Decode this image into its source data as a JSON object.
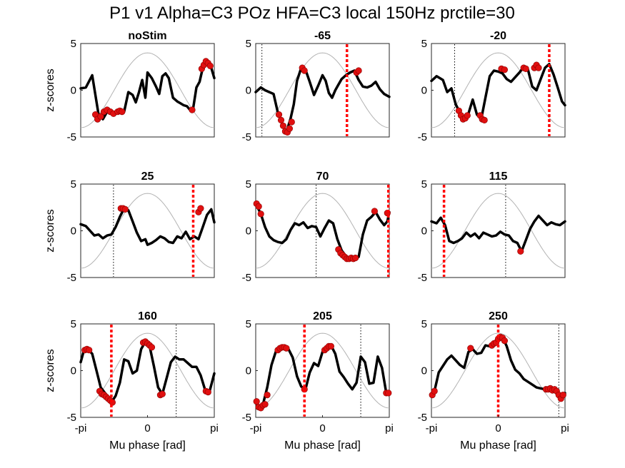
{
  "figure_title": "P1 v1 Alpha=C3 POz HFA=C3 local 150Hz prctile=30",
  "colors": {
    "signal": "#000000",
    "points": "#e01010",
    "cosine": "#b3b3b3",
    "red_marker": "#ff0000"
  },
  "chart_data": [
    {
      "type": "line",
      "title": "noStim",
      "ylabel": "z-scores",
      "xlabel": "",
      "xlim": [
        -3.1416,
        3.1416
      ],
      "ylim": [
        -5,
        5
      ],
      "yticks": [
        5,
        0,
        -5
      ],
      "xtick_labels": [],
      "red_marker": null,
      "black_dotted": null,
      "signal": {
        "x": [
          -3.14,
          -2.9,
          -2.6,
          -2.3,
          -2.1,
          -1.9,
          -1.6,
          -1.3,
          -1.1,
          -0.9,
          -0.7,
          -0.55,
          -0.4,
          -0.25,
          -0.1,
          0.0,
          0.2,
          0.4,
          0.55,
          0.7,
          0.85,
          1.0,
          1.2,
          1.4,
          1.55,
          1.7,
          1.85,
          2.0,
          2.15,
          2.3,
          2.45,
          2.6,
          2.75,
          2.9,
          3.0,
          3.14
        ],
        "y": [
          0.2,
          0.3,
          1.6,
          -2.6,
          -3.1,
          -2.3,
          -2.5,
          -2.2,
          -2.3,
          -0.2,
          -0.5,
          -1.3,
          -0.2,
          1.1,
          -0.8,
          1.9,
          1.3,
          0.4,
          -0.4,
          1.5,
          1.8,
          1.3,
          -0.8,
          -1.2,
          -1.4,
          -1.6,
          -1.7,
          -2.1,
          -1.9,
          0.3,
          0.9,
          2.4,
          3.0,
          2.8,
          2.4,
          1.3
        ]
      },
      "points": {
        "x": [
          -2.45,
          -2.35,
          -2.2,
          -2.05,
          -1.9,
          -1.75,
          -1.6,
          -1.4,
          -1.3,
          -1.2,
          2.1,
          2.55,
          2.65,
          2.75,
          2.85,
          2.95
        ],
        "y": [
          -2.6,
          -3.1,
          -2.8,
          -2.3,
          -2.1,
          -2.3,
          -2.5,
          -2.3,
          -2.2,
          -2.3,
          -2.1,
          2.3,
          2.7,
          3.1,
          2.9,
          2.6
        ]
      }
    },
    {
      "type": "line",
      "title": "-65",
      "ylabel": "",
      "xlabel": "",
      "xlim": [
        -3.1416,
        3.1416
      ],
      "ylim": [
        -5,
        5
      ],
      "yticks": [
        5,
        0,
        -5
      ],
      "xtick_labels": [],
      "red_marker": 1.15,
      "black_dotted": -2.85,
      "signal": {
        "x": [
          -3.14,
          -2.9,
          -2.7,
          -2.5,
          -2.3,
          -2.1,
          -1.9,
          -1.7,
          -1.5,
          -1.35,
          -1.2,
          -1.0,
          -0.8,
          -0.6,
          -0.4,
          -0.2,
          0.0,
          0.15,
          0.3,
          0.45,
          0.6,
          0.75,
          0.9,
          1.1,
          1.3,
          1.5,
          1.7,
          1.9,
          2.1,
          2.3,
          2.5,
          2.7,
          2.9,
          3.14
        ],
        "y": [
          -0.2,
          0.3,
          0.0,
          -0.2,
          -0.4,
          -2.4,
          -3.5,
          -4.5,
          -3.0,
          -1.5,
          1.0,
          2.4,
          2.2,
          0.9,
          -0.5,
          0.5,
          1.6,
          1.0,
          -0.3,
          -0.8,
          0.0,
          0.6,
          1.2,
          1.6,
          1.9,
          2.1,
          1.1,
          0.4,
          0.3,
          0.5,
          0.9,
          0.1,
          -0.4,
          -0.7
        ]
      },
      "points": {
        "x": [
          -2.05,
          -1.95,
          -1.85,
          -1.75,
          -1.65,
          -1.55,
          -1.45,
          -0.95,
          -0.85,
          1.6,
          1.7
        ],
        "y": [
          -2.6,
          -3.2,
          -3.8,
          -4.4,
          -4.5,
          -4.1,
          -3.4,
          2.4,
          2.1,
          1.9,
          2.1
        ]
      }
    },
    {
      "type": "line",
      "title": "-20",
      "ylabel": "",
      "xlabel": "",
      "xlim": [
        -3.1416,
        3.1416
      ],
      "ylim": [
        -5,
        5
      ],
      "yticks": [
        5,
        0,
        -5
      ],
      "xtick_labels": [],
      "red_marker": 2.4,
      "black_dotted": -2.05,
      "signal": {
        "x": [
          -3.14,
          -2.9,
          -2.6,
          -2.4,
          -2.2,
          -2.0,
          -1.8,
          -1.6,
          -1.4,
          -1.2,
          -1.0,
          -0.8,
          -0.6,
          -0.4,
          -0.2,
          0.0,
          0.2,
          0.4,
          0.6,
          0.8,
          1.0,
          1.2,
          1.4,
          1.6,
          1.8,
          2.0,
          2.2,
          2.4,
          2.6,
          2.8,
          3.0,
          3.14
        ],
        "y": [
          1.0,
          1.5,
          1.1,
          -0.2,
          0.2,
          -1.5,
          -2.4,
          -3.0,
          -2.5,
          -1.0,
          -2.6,
          -3.1,
          -0.8,
          1.5,
          2.1,
          2.0,
          1.8,
          1.2,
          0.9,
          1.4,
          1.9,
          2.5,
          2.2,
          0.4,
          0.0,
          1.2,
          2.4,
          2.8,
          1.7,
          0.3,
          -1.2,
          -1.6
        ]
      },
      "points": {
        "x": [
          -1.85,
          -1.75,
          -1.65,
          -1.55,
          -1.45,
          -0.85,
          -0.75,
          -0.65,
          0.15,
          0.3,
          1.2,
          1.3,
          1.7,
          1.8,
          1.9
        ],
        "y": [
          -2.2,
          -2.7,
          -3.1,
          -3.0,
          -2.7,
          -2.7,
          -3.1,
          -3.2,
          2.3,
          2.2,
          2.4,
          2.3,
          2.4,
          2.7,
          2.4
        ]
      }
    },
    {
      "type": "line",
      "title": "25",
      "ylabel": "z-scores",
      "xlabel": "",
      "xlim": [
        -3.1416,
        3.1416
      ],
      "ylim": [
        -5,
        5
      ],
      "yticks": [
        5,
        0,
        -5
      ],
      "xtick_labels": [],
      "red_marker": 2.15,
      "black_dotted": -1.6,
      "signal": {
        "x": [
          -3.14,
          -2.9,
          -2.7,
          -2.5,
          -2.3,
          -2.1,
          -1.9,
          -1.7,
          -1.5,
          -1.3,
          -1.1,
          -0.9,
          -0.7,
          -0.5,
          -0.3,
          -0.1,
          0.0,
          0.2,
          0.4,
          0.6,
          0.8,
          1.0,
          1.2,
          1.4,
          1.6,
          1.8,
          2.0,
          2.2,
          2.4,
          2.6,
          2.8,
          3.0,
          3.14
        ],
        "y": [
          0.7,
          0.5,
          0.0,
          -0.5,
          -0.4,
          -0.8,
          -0.5,
          -0.4,
          0.4,
          1.5,
          2.4,
          2.2,
          1.0,
          -0.2,
          -1.1,
          -0.9,
          -1.5,
          -1.3,
          -1.0,
          -0.6,
          -0.8,
          -1.2,
          -1.3,
          -0.6,
          -0.8,
          -0.1,
          -0.9,
          -0.6,
          -0.9,
          0.4,
          1.7,
          2.3,
          0.9
        ]
      },
      "points": {
        "x": [
          -1.25,
          -1.15,
          -1.05,
          2.4,
          2.5
        ],
        "y": [
          2.4,
          2.4,
          2.3,
          2.0,
          2.4
        ]
      }
    },
    {
      "type": "line",
      "title": "70",
      "ylabel": "",
      "xlabel": "",
      "xlim": [
        -3.1416,
        3.1416
      ],
      "ylim": [
        -5,
        5
      ],
      "yticks": [
        5,
        0,
        -5
      ],
      "xtick_labels": [],
      "red_marker": 3.1,
      "black_dotted": -0.3,
      "signal": {
        "x": [
          -3.14,
          -2.9,
          -2.7,
          -2.5,
          -2.3,
          -2.1,
          -1.9,
          -1.7,
          -1.5,
          -1.3,
          -1.1,
          -0.9,
          -0.7,
          -0.5,
          -0.3,
          -0.1,
          0.1,
          0.3,
          0.5,
          0.7,
          0.9,
          1.1,
          1.3,
          1.5,
          1.7,
          1.9,
          2.1,
          2.3,
          2.5,
          2.7,
          2.9,
          3.05,
          3.14
        ],
        "y": [
          2.9,
          1.8,
          0.4,
          -0.6,
          -1.0,
          -1.2,
          -1.3,
          -0.9,
          0.1,
          0.8,
          0.6,
          0.9,
          0.3,
          0.5,
          0.4,
          -0.6,
          0.3,
          1.1,
          0.8,
          -0.9,
          -2.1,
          -2.7,
          -3.0,
          -3.0,
          -2.8,
          -0.4,
          1.1,
          1.5,
          2.0,
          1.2,
          0.6,
          1.0,
          2.0
        ]
      },
      "points": {
        "x": [
          -3.1,
          -3.0,
          -2.9,
          0.75,
          0.85,
          0.95,
          1.05,
          1.15,
          1.25,
          1.35,
          1.45,
          1.55,
          2.45,
          3.05
        ],
        "y": [
          2.9,
          2.6,
          1.8,
          -2.0,
          -2.4,
          -2.6,
          -2.8,
          -3.0,
          -3.0,
          -2.9,
          -3.0,
          -2.9,
          2.1,
          1.9
        ]
      }
    },
    {
      "type": "line",
      "title": "115",
      "ylabel": "",
      "xlabel": "",
      "xlim": [
        -3.1416,
        3.1416
      ],
      "ylim": [
        -5,
        5
      ],
      "yticks": [
        5,
        0,
        -5
      ],
      "xtick_labels": [],
      "red_marker": -2.55,
      "black_dotted": 0.35,
      "signal": {
        "x": [
          -3.14,
          -2.9,
          -2.7,
          -2.5,
          -2.3,
          -2.1,
          -1.9,
          -1.7,
          -1.5,
          -1.3,
          -1.1,
          -0.9,
          -0.7,
          -0.5,
          -0.3,
          -0.1,
          0.1,
          0.3,
          0.5,
          0.7,
          0.9,
          1.1,
          1.3,
          1.5,
          1.7,
          1.9,
          2.1,
          2.3,
          2.5,
          2.7,
          2.9,
          3.14
        ],
        "y": [
          1.0,
          0.8,
          1.4,
          0.6,
          -1.1,
          -1.3,
          -1.1,
          -0.8,
          -0.2,
          -0.6,
          -0.3,
          -0.8,
          -0.2,
          -0.4,
          -0.6,
          -0.5,
          -0.1,
          -0.4,
          -0.5,
          -1.1,
          -1.3,
          -2.2,
          -1.0,
          0.2,
          1.0,
          1.6,
          1.1,
          0.6,
          0.9,
          0.7,
          0.6,
          1.0
        ]
      },
      "points": {
        "x": [
          1.05
        ],
        "y": [
          -2.2
        ]
      }
    },
    {
      "type": "line",
      "title": "160",
      "ylabel": "z-scores",
      "xlabel": "Mu phase [rad]",
      "xlim": [
        -3.1416,
        3.1416
      ],
      "ylim": [
        -5,
        5
      ],
      "yticks": [
        5,
        0,
        -5
      ],
      "xtick_labels": [
        "-pi",
        "0",
        "pi"
      ],
      "red_marker": -1.7,
      "black_dotted": 1.35,
      "signal": {
        "x": [
          -3.14,
          -3.0,
          -2.8,
          -2.6,
          -2.4,
          -2.2,
          -2.0,
          -1.85,
          -1.7,
          -1.5,
          -1.3,
          -1.1,
          -0.9,
          -0.7,
          -0.5,
          -0.3,
          -0.1,
          0.1,
          0.3,
          0.5,
          0.7,
          0.9,
          1.1,
          1.3,
          1.5,
          1.7,
          1.9,
          2.1,
          2.3,
          2.5,
          2.7,
          2.9,
          3.14
        ],
        "y": [
          0.9,
          2.1,
          2.3,
          1.8,
          0.0,
          -1.8,
          -2.4,
          -2.8,
          -3.4,
          -2.7,
          -1.3,
          1.2,
          1.0,
          -0.3,
          0.0,
          2.3,
          3.1,
          2.6,
          0.5,
          -1.8,
          -2.5,
          -0.8,
          0.9,
          1.5,
          1.2,
          1.2,
          0.8,
          0.4,
          0.4,
          -0.5,
          -2.0,
          -2.4,
          -0.3
        ]
      },
      "points": {
        "x": [
          -2.95,
          -2.85,
          -2.75,
          -2.25,
          -2.15,
          -2.05,
          -1.95,
          -1.85,
          -1.75,
          -1.65,
          -0.2,
          -0.1,
          0.0,
          0.1,
          0.2,
          0.6,
          0.7,
          2.75,
          2.85
        ],
        "y": [
          2.2,
          2.3,
          2.2,
          -2.2,
          -2.5,
          -2.6,
          -2.8,
          -3.0,
          -3.2,
          -3.4,
          3.0,
          3.1,
          2.9,
          2.7,
          2.5,
          -2.6,
          -2.5,
          -2.2,
          -2.3
        ]
      }
    },
    {
      "type": "line",
      "title": "205",
      "ylabel": "",
      "xlabel": "Mu phase [rad]",
      "xlim": [
        -3.1416,
        3.1416
      ],
      "ylim": [
        -5,
        5
      ],
      "yticks": [
        5,
        0,
        -5
      ],
      "xtick_labels": [
        "-pi",
        "0",
        "pi"
      ],
      "red_marker": -0.85,
      "black_dotted": 1.8,
      "signal": {
        "x": [
          -3.14,
          -3.0,
          -2.8,
          -2.6,
          -2.4,
          -2.2,
          -2.0,
          -1.8,
          -1.6,
          -1.4,
          -1.2,
          -1.0,
          -0.8,
          -0.6,
          -0.4,
          -0.2,
          0.0,
          0.2,
          0.4,
          0.6,
          0.8,
          1.0,
          1.2,
          1.4,
          1.6,
          1.8,
          2.0,
          2.2,
          2.4,
          2.6,
          2.8,
          3.0,
          3.14
        ],
        "y": [
          -3.2,
          -4.0,
          -3.6,
          -1.8,
          0.6,
          2.0,
          2.5,
          2.5,
          2.3,
          1.4,
          -0.6,
          -1.7,
          -2.0,
          -0.2,
          0.8,
          0.5,
          2.0,
          2.4,
          2.7,
          1.8,
          -0.1,
          -0.7,
          -1.4,
          -2.0,
          -1.3,
          1.5,
          0.9,
          -1.4,
          -1.3,
          1.5,
          0.3,
          -2.4,
          -2.4
        ]
      },
      "points": {
        "x": [
          -3.1,
          -3.0,
          -2.9,
          -2.8,
          -2.7,
          -2.6,
          -2.1,
          -2.0,
          -1.9,
          -1.8,
          -1.7,
          -0.85,
          0.1,
          0.2,
          0.3,
          0.4,
          3.0,
          3.1
        ],
        "y": [
          -3.3,
          -3.9,
          -4.0,
          -3.7,
          -3.6,
          -2.6,
          2.2,
          2.4,
          2.5,
          2.5,
          2.4,
          -2.0,
          2.2,
          2.4,
          2.6,
          2.6,
          -2.4,
          -2.4
        ]
      }
    },
    {
      "type": "line",
      "title": "250",
      "ylabel": "",
      "xlabel": "Mu phase [rad]",
      "xlim": [
        -3.1416,
        3.1416
      ],
      "ylim": [
        -5,
        5
      ],
      "yticks": [
        5,
        0,
        -5
      ],
      "xtick_labels": [
        "-pi",
        "0",
        "pi"
      ],
      "red_marker": 0.0,
      "black_dotted": 2.85,
      "signal": {
        "x": [
          -3.14,
          -3.0,
          -2.8,
          -2.6,
          -2.4,
          -2.2,
          -2.0,
          -1.8,
          -1.6,
          -1.4,
          -1.2,
          -1.0,
          -0.8,
          -0.6,
          -0.4,
          -0.2,
          0.0,
          0.2,
          0.4,
          0.6,
          0.8,
          1.0,
          1.2,
          1.4,
          1.6,
          1.8,
          2.0,
          2.2,
          2.4,
          2.6,
          2.8,
          3.0,
          3.14
        ],
        "y": [
          -2.6,
          -2.2,
          -0.2,
          0.5,
          1.2,
          1.6,
          1.1,
          0.6,
          0.3,
          2.0,
          2.3,
          1.8,
          1.9,
          2.7,
          2.6,
          3.0,
          3.4,
          3.6,
          2.6,
          1.1,
          0.1,
          -0.3,
          -0.9,
          -1.2,
          -1.5,
          -1.8,
          -1.9,
          -2.0,
          -1.8,
          -2.1,
          -2.6,
          -3.0,
          -2.4
        ]
      },
      "points": {
        "x": [
          -3.1,
          -3.0,
          -1.3,
          -0.3,
          -0.2,
          -0.1,
          0.0,
          0.1,
          0.2,
          0.3,
          2.25,
          2.35,
          2.45,
          2.55,
          2.65,
          2.75,
          2.85,
          2.95,
          3.05
        ],
        "y": [
          -2.6,
          -2.2,
          2.4,
          2.7,
          2.9,
          3.0,
          3.4,
          3.6,
          3.5,
          3.2,
          -2.0,
          -2.0,
          -1.9,
          -2.1,
          -2.0,
          -2.2,
          -2.6,
          -3.0,
          -2.6
        ]
      }
    }
  ]
}
